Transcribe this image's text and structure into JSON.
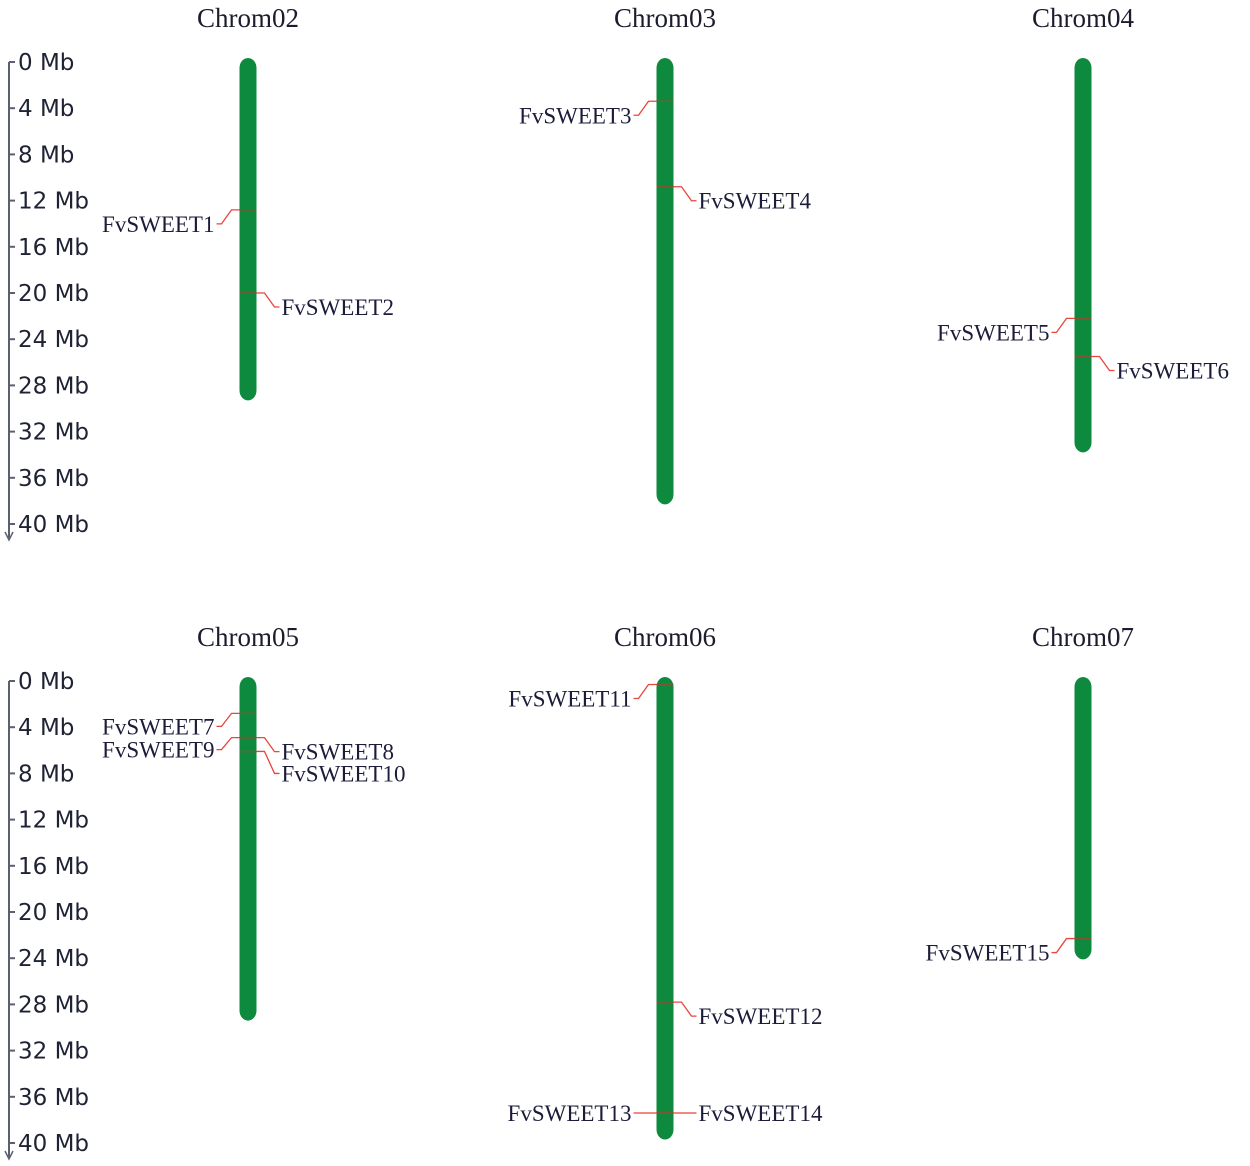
{
  "chart_data": {
    "type": "chromosome-map",
    "axis_unit": "Mb",
    "axis_ticks": [
      "0 Mb",
      "4 Mb",
      "8 Mb",
      "12 Mb",
      "16 Mb",
      "20 Mb",
      "24 Mb",
      "28 Mb",
      "32 Mb",
      "36 Mb",
      "40 Mb"
    ],
    "axis_range": [
      0,
      40
    ],
    "colors": {
      "chromosome": "#0e8a3e",
      "gene_line": "#e8453c",
      "axis": "#5a6070"
    },
    "panels": [
      {
        "chromosomes": [
          {
            "name": "Chrom02",
            "length": 29.3,
            "genes": [
              {
                "name": "FvSWEET1",
                "pos": 12.8,
                "side": "left"
              },
              {
                "name": "FvSWEET2",
                "pos": 20.0,
                "side": "right"
              }
            ]
          },
          {
            "name": "Chrom03",
            "length": 38.3,
            "genes": [
              {
                "name": "FvSWEET3",
                "pos": 3.4,
                "side": "left"
              },
              {
                "name": "FvSWEET4",
                "pos": 10.8,
                "side": "right"
              }
            ]
          },
          {
            "name": "Chrom04",
            "length": 33.8,
            "genes": [
              {
                "name": "FvSWEET5",
                "pos": 22.2,
                "side": "left"
              },
              {
                "name": "FvSWEET6",
                "pos": 25.5,
                "side": "right"
              }
            ]
          }
        ]
      },
      {
        "chromosomes": [
          {
            "name": "Chrom05",
            "length": 29.4,
            "genes": [
              {
                "name": "FvSWEET7",
                "pos": 2.8,
                "side": "left"
              },
              {
                "name": "FvSWEET9",
                "pos": 4.9,
                "side": "left"
              },
              {
                "name": "FvSWEET8",
                "pos": 4.9,
                "side": "right"
              },
              {
                "name": "FvSWEET10",
                "pos": 6.1,
                "side": "right"
              }
            ]
          },
          {
            "name": "Chrom06",
            "length": 39.7,
            "genes": [
              {
                "name": "FvSWEET11",
                "pos": 0.3,
                "side": "left"
              },
              {
                "name": "FvSWEET12",
                "pos": 27.8,
                "side": "right"
              },
              {
                "name": "FvSWEET13",
                "pos": 37.4,
                "side": "left"
              },
              {
                "name": "FvSWEET14",
                "pos": 37.4,
                "side": "right"
              }
            ]
          },
          {
            "name": "Chrom07",
            "length": 24.1,
            "genes": [
              {
                "name": "FvSWEET15",
                "pos": 22.3,
                "side": "left"
              }
            ]
          }
        ]
      }
    ]
  }
}
